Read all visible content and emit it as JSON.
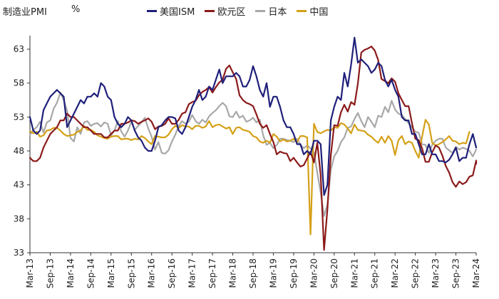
{
  "chart_data": {
    "type": "line",
    "title": "",
    "ylabel": "制造业PMI",
    "yunit": "%",
    "ylim": [
      33,
      65
    ],
    "yticks": [
      33,
      38,
      43,
      48,
      53,
      58,
      63
    ],
    "xticks": [
      "Mar-13",
      "Sep-13",
      "Mar-14",
      "Sep-14",
      "Mar-15",
      "Sep-15",
      "Mar-16",
      "Sep-16",
      "Mar-17",
      "Sep-17",
      "Mar-18",
      "Sep-18",
      "Mar-19",
      "Sep-19",
      "Mar-20",
      "Sep-20",
      "Mar-21",
      "Sep-21",
      "Mar-22",
      "Sep-22",
      "Mar-23",
      "Sep-23",
      "Mar-24"
    ],
    "legend_position": "top",
    "grid": false,
    "x_monthly_start": "Mar-13",
    "series": [
      {
        "name": "美国ISM",
        "color": "#1f1f7a",
        "values": [
          53.0,
          51.0,
          50.5,
          51.0,
          54.0,
          55.0,
          56.0,
          56.5,
          57.0,
          56.5,
          56.0,
          51.5,
          52.5,
          53.5,
          54.5,
          55.5,
          55.0,
          56.0,
          56.0,
          56.5,
          56.0,
          58.0,
          57.5,
          56.0,
          55.5,
          53.0,
          52.0,
          51.5,
          52.0,
          53.0,
          52.5,
          51.0,
          50.0,
          49.5,
          48.5,
          48.0,
          48.0,
          49.5,
          51.5,
          51.8,
          52.5,
          53.0,
          53.0,
          52.8,
          51.0,
          50.5,
          51.5,
          53.0,
          54.5,
          55.5,
          57.0,
          55.5,
          56.0,
          57.5,
          57.0,
          58.5,
          60.0,
          58.0,
          59.0,
          59.0,
          59.0,
          59.5,
          59.0,
          57.5,
          57.5,
          58.5,
          60.5,
          59.0,
          57.0,
          56.0,
          58.0,
          54.5,
          56.0,
          56.0,
          54.5,
          52.5,
          51.5,
          51.5,
          50.5,
          49.0,
          49.0,
          47.5,
          48.0,
          47.5,
          49.5,
          49.5,
          49.0,
          41.5,
          43.0,
          52.5,
          54.5,
          56.0,
          55.5,
          59.5,
          57.5,
          60.7,
          64.7,
          61.0,
          61.5,
          61.0,
          60.5,
          59.5,
          60.0,
          61.0,
          60.5,
          58.5,
          57.5,
          58.5,
          57.0,
          56.0,
          53.0,
          52.5,
          52.5,
          50.5,
          50.5,
          49.0,
          47.5,
          47.5,
          49.0,
          47.5,
          47.5,
          46.5,
          46.5,
          46.3,
          46.7,
          47.5,
          48.5,
          46.5,
          47.0,
          47.0,
          49.0,
          50.5,
          48.5
        ],
        "values_start_index": 0
      }
    ]
  }
}
